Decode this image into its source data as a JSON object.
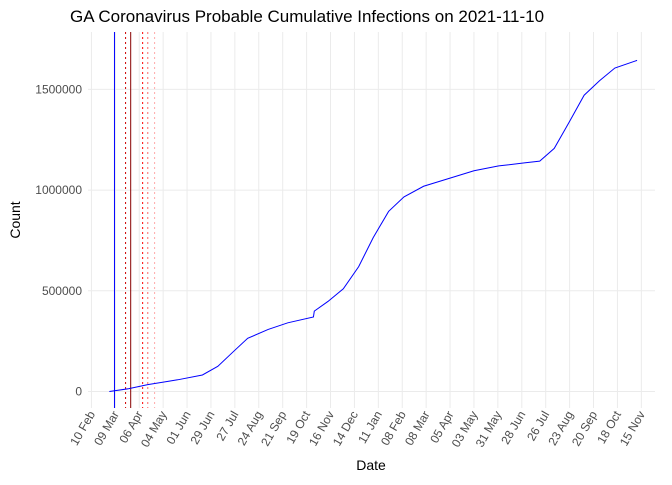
{
  "chart_data": {
    "type": "line",
    "title": "GA Coronavirus Probable Cumulative Infections on 2021-11-10",
    "x_label": "Date",
    "y_label": "Count",
    "series": [
      {
        "name": "Probable cumulative infections",
        "color": "#0000ff",
        "x": [
          "2020-03-02",
          "2020-03-25",
          "2020-04-16",
          "2020-05-21",
          "2020-06-19",
          "2020-07-07",
          "2020-07-25",
          "2020-08-11",
          "2020-09-04",
          "2020-09-27",
          "2020-10-27",
          "2020-10-28",
          "2020-11-13",
          "2020-12-01",
          "2020-12-19",
          "2021-01-05",
          "2021-01-23",
          "2021-02-10",
          "2021-03-05",
          "2021-04-04",
          "2021-05-03",
          "2021-06-01",
          "2021-07-01",
          "2021-07-19",
          "2021-08-05",
          "2021-08-23",
          "2021-09-09",
          "2021-09-27",
          "2021-10-15",
          "2021-11-10"
        ],
        "values": [
          0,
          14000,
          34000,
          58000,
          82000,
          125000,
          197000,
          264000,
          308000,
          341000,
          370000,
          399000,
          447000,
          510000,
          620000,
          764000,
          894000,
          966000,
          1019000,
          1058000,
          1096000,
          1120000,
          1135000,
          1144000,
          1207000,
          1341000,
          1471000,
          1543000,
          1606000,
          1644000
        ]
      }
    ],
    "vlines": [
      {
        "x": "2020-03-08",
        "color": "#0000ff",
        "dashed": false
      },
      {
        "x": "2020-03-21",
        "color": "#cc0000",
        "dashed": true
      },
      {
        "x": "2020-03-27",
        "color": "#880000",
        "dashed": false
      },
      {
        "x": "2020-04-10",
        "color": "#ff0000",
        "dashed": true
      },
      {
        "x": "2020-04-16",
        "color": "#ff6666",
        "dashed": true
      },
      {
        "x": "2020-04-24",
        "color": "#ffaaaa",
        "dashed": true
      }
    ],
    "xlim": [
      "2020-02-06",
      "2021-12-01"
    ],
    "xticks": [
      {
        "value": "2020-02-10",
        "label": "10 Feb"
      },
      {
        "value": "2020-03-09",
        "label": "09 Mar"
      },
      {
        "value": "2020-04-06",
        "label": "06 Apr"
      },
      {
        "value": "2020-05-04",
        "label": "04 May"
      },
      {
        "value": "2020-06-01",
        "label": "01 Jun"
      },
      {
        "value": "2020-06-29",
        "label": "29 Jun"
      },
      {
        "value": "2020-07-27",
        "label": "27 Jul"
      },
      {
        "value": "2020-08-24",
        "label": "24 Aug"
      },
      {
        "value": "2020-09-21",
        "label": "21 Sep"
      },
      {
        "value": "2020-10-19",
        "label": "19 Oct"
      },
      {
        "value": "2020-11-16",
        "label": "16 Nov"
      },
      {
        "value": "2020-12-14",
        "label": "14 Dec"
      },
      {
        "value": "2021-01-11",
        "label": "11 Jan"
      },
      {
        "value": "2021-02-08",
        "label": "08 Feb"
      },
      {
        "value": "2021-03-08",
        "label": "08 Mar"
      },
      {
        "value": "2021-04-05",
        "label": "05 Apr"
      },
      {
        "value": "2021-05-03",
        "label": "03 May"
      },
      {
        "value": "2021-05-31",
        "label": "31 May"
      },
      {
        "value": "2021-06-28",
        "label": "28 Jun"
      },
      {
        "value": "2021-07-26",
        "label": "26 Jul"
      },
      {
        "value": "2021-08-23",
        "label": "23 Aug"
      },
      {
        "value": "2021-09-20",
        "label": "20 Sep"
      },
      {
        "value": "2021-10-18",
        "label": "18 Oct"
      },
      {
        "value": "2021-11-15",
        "label": "15 Nov"
      }
    ],
    "ylim": [
      -82000,
      1785000
    ],
    "yticks": [
      0,
      500000,
      1000000,
      1500000
    ],
    "grid": true
  }
}
